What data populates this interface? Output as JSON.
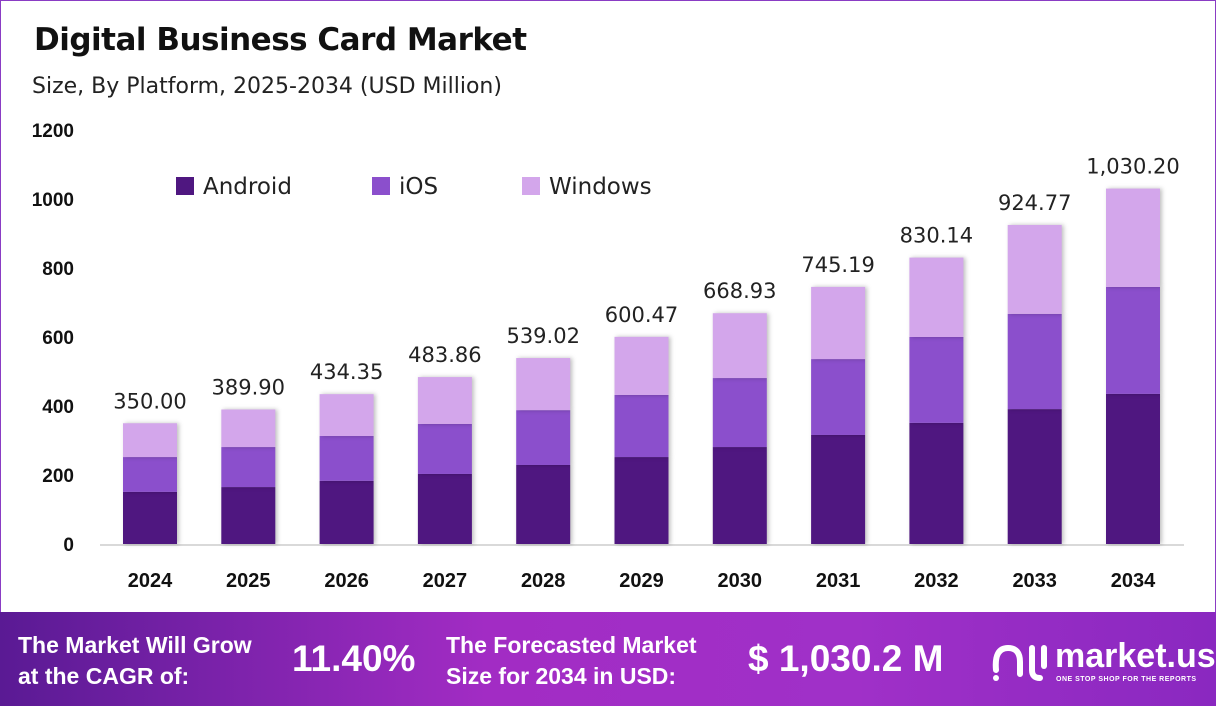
{
  "title": "Digital Business Card Market",
  "subtitle": "Size, By Platform, 2025-2034 (USD Million)",
  "chart_data": {
    "type": "bar",
    "stacked": true,
    "categories": [
      "2024",
      "2025",
      "2026",
      "2027",
      "2028",
      "2029",
      "2030",
      "2031",
      "2032",
      "2033",
      "2034"
    ],
    "series": [
      {
        "name": "Android",
        "color": "#4f1780",
        "values": [
          151,
          165,
          183,
          203,
          229,
          252,
          281,
          316,
          351,
          391,
          435
        ]
      },
      {
        "name": "iOS",
        "color": "#8b4fcc",
        "values": [
          101,
          116,
          130,
          145,
          159,
          180,
          200,
          220,
          249,
          276,
          310
        ]
      },
      {
        "name": "Windows",
        "color": "#d3a6eb",
        "values": [
          98,
          108.9,
          121.35,
          135.86,
          151.02,
          168.47,
          187.93,
          209.19,
          230.14,
          257.77,
          285.2
        ]
      }
    ],
    "totals": [
      "350.00",
      "389.90",
      "434.35",
      "483.86",
      "539.02",
      "600.47",
      "668.93",
      "745.19",
      "830.14",
      "924.77",
      "1,030.20"
    ],
    "ylim": [
      0,
      1200
    ],
    "yticks": [
      "0",
      "200",
      "400",
      "600",
      "800",
      "1000",
      "1200"
    ],
    "grid": false,
    "legend": "top-left"
  },
  "banner": {
    "cagr_label_1": "The Market Will Grow",
    "cagr_label_2": "at the CAGR of:",
    "cagr_value": "11.40%",
    "forecast_label_1": "The Forecasted Market",
    "forecast_label_2": "Size for 2034 in USD:",
    "forecast_value": "$ 1,030.2 M",
    "logo_name": "market.us",
    "logo_tagline": "ONE STOP SHOP FOR THE REPORTS"
  }
}
